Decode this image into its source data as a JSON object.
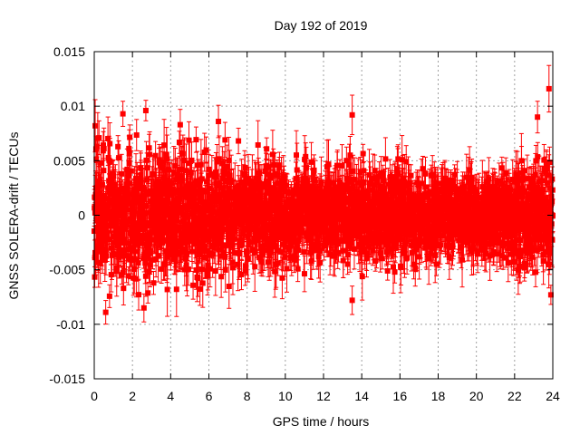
{
  "chart_data": {
    "type": "scatter",
    "title": "Day 192 of 2019",
    "xlabel": "GPS time / hours",
    "ylabel": "GNSS SOLERA-drift / TECUs",
    "xlim": [
      0,
      24
    ],
    "ylim": [
      -0.015,
      0.015
    ],
    "xticks": [
      0,
      2,
      4,
      6,
      8,
      10,
      12,
      14,
      16,
      18,
      20,
      22,
      24
    ],
    "xtick_labels": [
      "0",
      "2",
      "4",
      "6",
      "8",
      "10",
      "12",
      "14",
      "16",
      "18",
      "20",
      "22",
      "24"
    ],
    "yticks": [
      -0.015,
      -0.01,
      -0.005,
      0,
      0.005,
      0.01,
      0.015
    ],
    "ytick_labels": [
      "-0.015",
      "-0.01",
      "-0.005",
      "0",
      "0.005",
      "0.01",
      "0.015"
    ],
    "grid": true,
    "series_color": "#ff0000",
    "marker": "filled-square-with-errorbars",
    "x_step_hours": 0.00833,
    "amplitude_envelope": {
      "x": [
        0,
        2,
        4,
        6,
        8,
        10,
        12,
        14,
        16,
        18,
        20,
        22,
        24
      ],
      "y_spread": [
        0.0055,
        0.0055,
        0.005,
        0.0052,
        0.005,
        0.0042,
        0.0038,
        0.0042,
        0.0038,
        0.0033,
        0.003,
        0.0038,
        0.0048
      ]
    },
    "errorbar_half_range": [
      0.0008,
      0.0025
    ],
    "notable_points": [
      {
        "x": 0.05,
        "y": 0.0082
      },
      {
        "x": 0.25,
        "y": 0.0071
      },
      {
        "x": 1.5,
        "y": 0.0093
      },
      {
        "x": 2.7,
        "y": 0.0096
      },
      {
        "x": 4.5,
        "y": 0.0083
      },
      {
        "x": 6.5,
        "y": 0.0086
      },
      {
        "x": 13.5,
        "y": 0.0092
      },
      {
        "x": 23.8,
        "y": 0.0116
      },
      {
        "x": 23.2,
        "y": 0.009
      },
      {
        "x": 0.6,
        "y": -0.0089
      },
      {
        "x": 2.6,
        "y": -0.0085
      },
      {
        "x": 13.5,
        "y": -0.0078
      },
      {
        "x": 23.9,
        "y": -0.0073
      }
    ]
  }
}
